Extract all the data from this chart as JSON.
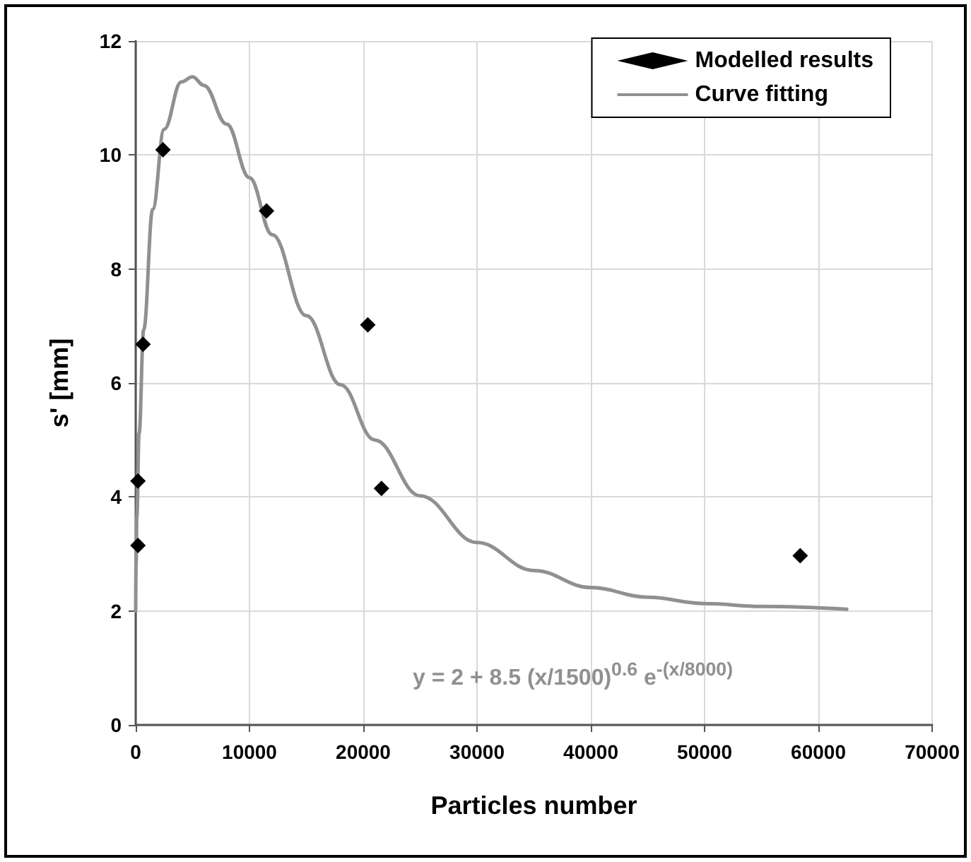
{
  "chart_data": {
    "type": "scatter",
    "xlabel": "Particles number",
    "ylabel": "s' [mm]",
    "xlim": [
      0,
      70000
    ],
    "xticks": [
      0,
      10000,
      20000,
      30000,
      40000,
      50000,
      60000,
      70000
    ],
    "ylim": [
      0,
      12
    ],
    "yticks": [
      0,
      2,
      4,
      6,
      8,
      10,
      12
    ],
    "grid": true,
    "legend": "top right",
    "annotations": [
      "y = 2 + 8.5 (x/1500)$^{0.6}$ e$^{-(x/8000)}$"
    ],
    "series": [
      {
        "name": "Modelled results",
        "marker": "diamond",
        "color": "#000000",
        "x": [
          200,
          200,
          650,
          2400,
          11500,
          20400,
          21600,
          58400
        ],
        "values": [
          3.15,
          4.28,
          6.68,
          10.09,
          9.02,
          7.02,
          4.15,
          2.97
        ]
      },
      {
        "name": "Curve fitting",
        "type": "line",
        "marker": "none",
        "line_style": "solid",
        "color": "#909090",
        "x": [
          0,
          30,
          100,
          300,
          700,
          1500,
          2500,
          4000,
          5000,
          6000,
          8000,
          10000,
          12000,
          15000,
          18000,
          21000,
          25000,
          30000,
          35000,
          40000,
          45000,
          50000,
          55000,
          62500
        ],
        "values": [
          2,
          2.81,
          3.65,
          5.12,
          6.93,
          9.05,
          10.45,
          11.28,
          11.37,
          11.22,
          10.54,
          9.6,
          8.6,
          7.18,
          5.97,
          5,
          4.02,
          3.2,
          2.71,
          2.41,
          2.24,
          2.13,
          2.08,
          2.03
        ]
      }
    ]
  }
}
